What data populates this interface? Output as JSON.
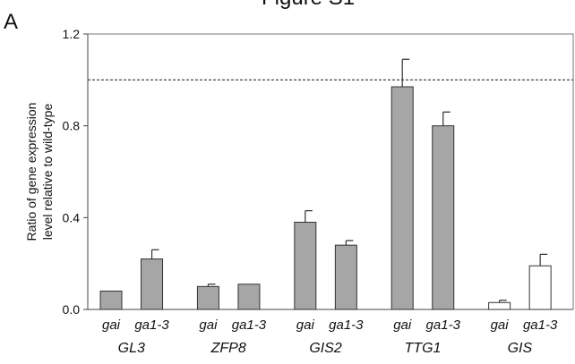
{
  "figure": {
    "title": "Figure S1",
    "panel_letter": "A"
  },
  "chart_data": {
    "type": "bar",
    "ylabel_lines": [
      "Ratio of gene expression",
      "level relative to wild-type"
    ],
    "ylim": [
      0,
      1.2
    ],
    "yticks": [
      "0.0",
      "0.4",
      "0.8",
      "1.2"
    ],
    "reference_line": 1.0,
    "colors": {
      "filled": "#a6a6a6",
      "open": "#ffffff"
    },
    "groups": [
      {
        "name": "GL3",
        "bars": [
          {
            "label": "gai",
            "value": 0.08,
            "error": 0.0,
            "fill": "filled"
          },
          {
            "label": "ga1-3",
            "value": 0.22,
            "error": 0.04,
            "fill": "filled"
          }
        ]
      },
      {
        "name": "ZFP8",
        "bars": [
          {
            "label": "gai",
            "value": 0.1,
            "error": 0.01,
            "fill": "filled"
          },
          {
            "label": "ga1-3",
            "value": 0.11,
            "error": 0.0,
            "fill": "filled"
          }
        ]
      },
      {
        "name": "GIS2",
        "bars": [
          {
            "label": "gai",
            "value": 0.38,
            "error": 0.05,
            "fill": "filled"
          },
          {
            "label": "ga1-3",
            "value": 0.28,
            "error": 0.02,
            "fill": "filled"
          }
        ]
      },
      {
        "name": "TTG1",
        "bars": [
          {
            "label": "gai",
            "value": 0.97,
            "error": 0.12,
            "fill": "filled"
          },
          {
            "label": "ga1-3",
            "value": 0.8,
            "error": 0.06,
            "fill": "filled"
          }
        ]
      },
      {
        "name": "GIS",
        "bars": [
          {
            "label": "gai",
            "value": 0.03,
            "error": 0.01,
            "fill": "open"
          },
          {
            "label": "ga1-3",
            "value": 0.19,
            "error": 0.05,
            "fill": "open"
          }
        ]
      }
    ]
  }
}
